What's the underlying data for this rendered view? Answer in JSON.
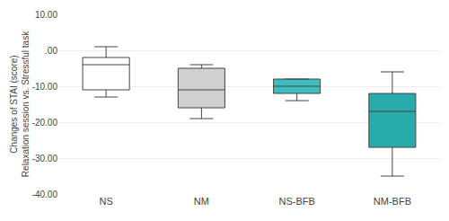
{
  "chart_data": {
    "type": "box",
    "categories": [
      "NS",
      "NM",
      "NS-BFB",
      "NM-BFB"
    ],
    "boxes": [
      {
        "q1": -11,
        "median": -4,
        "q3": -2,
        "whislo": -13,
        "whishi": 1
      },
      {
        "q1": -16,
        "median": -11,
        "q3": -5,
        "whislo": -19,
        "whishi": -4
      },
      {
        "q1": -12,
        "median": -10,
        "q3": -8,
        "whislo": -14,
        "whishi": -8
      },
      {
        "q1": -27,
        "median": -17,
        "q3": -12,
        "whislo": -35,
        "whishi": -6
      }
    ],
    "colors": [
      "white",
      "#d0d0d0",
      "#3dbdbd",
      "#2aabab"
    ],
    "ylabel": "Changes of STAI (score)\nRelaxation session vs. Stressful task",
    "ylim": [
      -40,
      10
    ],
    "yticks": [
      {
        "value": 10,
        "label": "10.00"
      },
      {
        "value": 0,
        "label": ".00"
      },
      {
        "value": -10,
        "label": "-10.00"
      },
      {
        "value": -20,
        "label": "-20.00"
      },
      {
        "value": -30,
        "label": "-30.00"
      },
      {
        "value": -40,
        "label": "-40.00"
      }
    ],
    "grid": true
  }
}
